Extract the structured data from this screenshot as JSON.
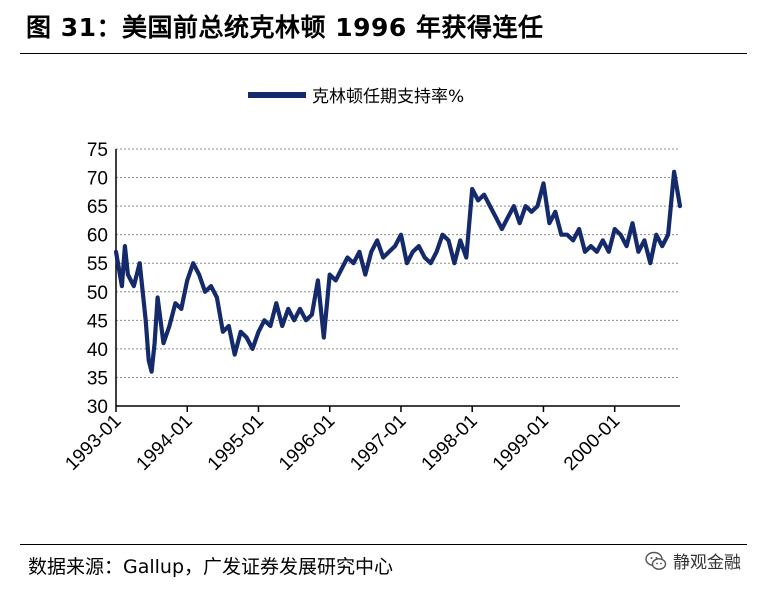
{
  "header": {
    "title": "图 31：美国前总统克林顿 1996 年获得连任"
  },
  "footer": {
    "source": "数据来源：Gallup，广发证券发展研究中心",
    "watermark": "静观金融",
    "watermark_icon": "wechat-icon"
  },
  "colors": {
    "series": "#142a6b",
    "grid": "#8c8c8c"
  },
  "chart_data": {
    "type": "line",
    "title": "",
    "xlabel": "",
    "ylabel": "",
    "ylim": [
      30,
      75
    ],
    "yticks": [
      "30",
      "35",
      "40",
      "45",
      "50",
      "55",
      "60",
      "65",
      "70",
      "75"
    ],
    "xlim": [
      "1993-01",
      "2000-12"
    ],
    "xticks": [
      "1993-01",
      "1994-01",
      "1995-01",
      "1996-01",
      "1997-01",
      "1998-01",
      "1999-01",
      "2000-01"
    ],
    "grid": "horizontal dotted",
    "legend": "top",
    "series": [
      {
        "name": "克林顿任期支持率%",
        "points": [
          [
            "1993-01",
            57
          ],
          [
            "1993-02",
            51
          ],
          [
            "1993-02",
            58
          ],
          [
            "1993-03",
            53
          ],
          [
            "1993-04",
            51
          ],
          [
            "1993-05",
            55
          ],
          [
            "1993-06",
            45
          ],
          [
            "1993-06",
            38
          ],
          [
            "1993-07",
            36
          ],
          [
            "1993-07",
            41
          ],
          [
            "1993-08",
            49
          ],
          [
            "1993-09",
            41
          ],
          [
            "1993-10",
            44
          ],
          [
            "1993-11",
            48
          ],
          [
            "1993-12",
            47
          ],
          [
            "1994-01",
            52
          ],
          [
            "1994-02",
            55
          ],
          [
            "1994-03",
            53
          ],
          [
            "1994-04",
            50
          ],
          [
            "1994-05",
            51
          ],
          [
            "1994-06",
            49
          ],
          [
            "1994-07",
            43
          ],
          [
            "1994-08",
            44
          ],
          [
            "1994-09",
            39
          ],
          [
            "1994-10",
            43
          ],
          [
            "1994-11",
            42
          ],
          [
            "1994-12",
            40
          ],
          [
            "1995-01",
            43
          ],
          [
            "1995-02",
            45
          ],
          [
            "1995-03",
            44
          ],
          [
            "1995-04",
            48
          ],
          [
            "1995-05",
            44
          ],
          [
            "1995-06",
            47
          ],
          [
            "1995-07",
            45
          ],
          [
            "1995-08",
            47
          ],
          [
            "1995-09",
            45
          ],
          [
            "1995-10",
            46
          ],
          [
            "1995-11",
            52
          ],
          [
            "1995-12",
            42
          ],
          [
            "1996-01",
            53
          ],
          [
            "1996-02",
            52
          ],
          [
            "1996-03",
            54
          ],
          [
            "1996-04",
            56
          ],
          [
            "1996-05",
            55
          ],
          [
            "1996-06",
            57
          ],
          [
            "1996-07",
            53
          ],
          [
            "1996-08",
            57
          ],
          [
            "1996-09",
            59
          ],
          [
            "1996-10",
            56
          ],
          [
            "1996-11",
            57
          ],
          [
            "1996-12",
            58
          ],
          [
            "1997-01",
            60
          ],
          [
            "1997-02",
            55
          ],
          [
            "1997-03",
            57
          ],
          [
            "1997-04",
            58
          ],
          [
            "1997-05",
            56
          ],
          [
            "1997-06",
            55
          ],
          [
            "1997-07",
            57
          ],
          [
            "1997-08",
            60
          ],
          [
            "1997-09",
            59
          ],
          [
            "1997-10",
            55
          ],
          [
            "1997-11",
            59
          ],
          [
            "1997-12",
            56
          ],
          [
            "1998-01",
            68
          ],
          [
            "1998-02",
            66
          ],
          [
            "1998-03",
            67
          ],
          [
            "1998-04",
            65
          ],
          [
            "1998-05",
            63
          ],
          [
            "1998-06",
            61
          ],
          [
            "1998-07",
            63
          ],
          [
            "1998-08",
            65
          ],
          [
            "1998-09",
            62
          ],
          [
            "1998-10",
            65
          ],
          [
            "1998-11",
            64
          ],
          [
            "1998-12",
            65
          ],
          [
            "1999-01",
            69
          ],
          [
            "1999-02",
            62
          ],
          [
            "1999-03",
            64
          ],
          [
            "1999-04",
            60
          ],
          [
            "1999-05",
            60
          ],
          [
            "1999-06",
            59
          ],
          [
            "1999-07",
            61
          ],
          [
            "1999-08",
            57
          ],
          [
            "1999-09",
            58
          ],
          [
            "1999-10",
            57
          ],
          [
            "1999-11",
            59
          ],
          [
            "1999-12",
            57
          ],
          [
            "2000-01",
            61
          ],
          [
            "2000-02",
            60
          ],
          [
            "2000-03",
            58
          ],
          [
            "2000-04",
            62
          ],
          [
            "2000-05",
            57
          ],
          [
            "2000-06",
            59
          ],
          [
            "2000-07",
            55
          ],
          [
            "2000-08",
            60
          ],
          [
            "2000-09",
            58
          ],
          [
            "2000-10",
            60
          ],
          [
            "2000-11",
            71
          ],
          [
            "2000-12",
            65
          ]
        ]
      }
    ]
  }
}
